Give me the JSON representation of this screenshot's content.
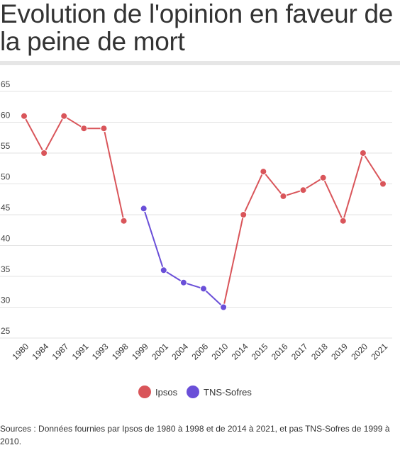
{
  "title": "Evolution de l'opinion en faveur de la peine de mort",
  "source": "Sources : Données fournies par Ipsos de 1980 à 1998 et de 2014 à 2021, et pas TNS-Sofres de 1999 à 2010.",
  "chart_data": {
    "type": "line",
    "title": "Evolution de l'opinion en faveur de la peine de mort",
    "xlabel": "",
    "ylabel": "",
    "categories": [
      "1980",
      "1984",
      "1987",
      "1991",
      "1993",
      "1998",
      "1999",
      "2001",
      "2004",
      "2006",
      "2010",
      "2014",
      "2015",
      "2016",
      "2017",
      "2018",
      "2019",
      "2020",
      "2021"
    ],
    "y_ticks": [
      25,
      30,
      35,
      40,
      45,
      50,
      55,
      60,
      65
    ],
    "ylim": [
      25,
      65
    ],
    "grid": true,
    "legend_position": "bottom",
    "series": [
      {
        "name": "Ipsos",
        "color": "#d9555a",
        "segments": [
          {
            "categories": [
              "1980",
              "1984",
              "1987",
              "1991",
              "1993",
              "1998"
            ],
            "values": [
              61,
              55,
              61,
              59,
              59,
              44
            ]
          },
          {
            "categories": [
              "2010",
              "2014",
              "2015",
              "2016",
              "2017",
              "2018",
              "2019",
              "2020",
              "2021"
            ],
            "values": [
              30,
              45,
              52,
              48,
              49,
              51,
              44,
              55,
              50
            ]
          }
        ]
      },
      {
        "name": "TNS-Sofres",
        "color": "#6a4fd8",
        "segments": [
          {
            "categories": [
              "1999",
              "2001",
              "2004",
              "2006",
              "2010"
            ],
            "values": [
              46,
              36,
              34,
              33,
              30
            ]
          }
        ]
      }
    ]
  }
}
